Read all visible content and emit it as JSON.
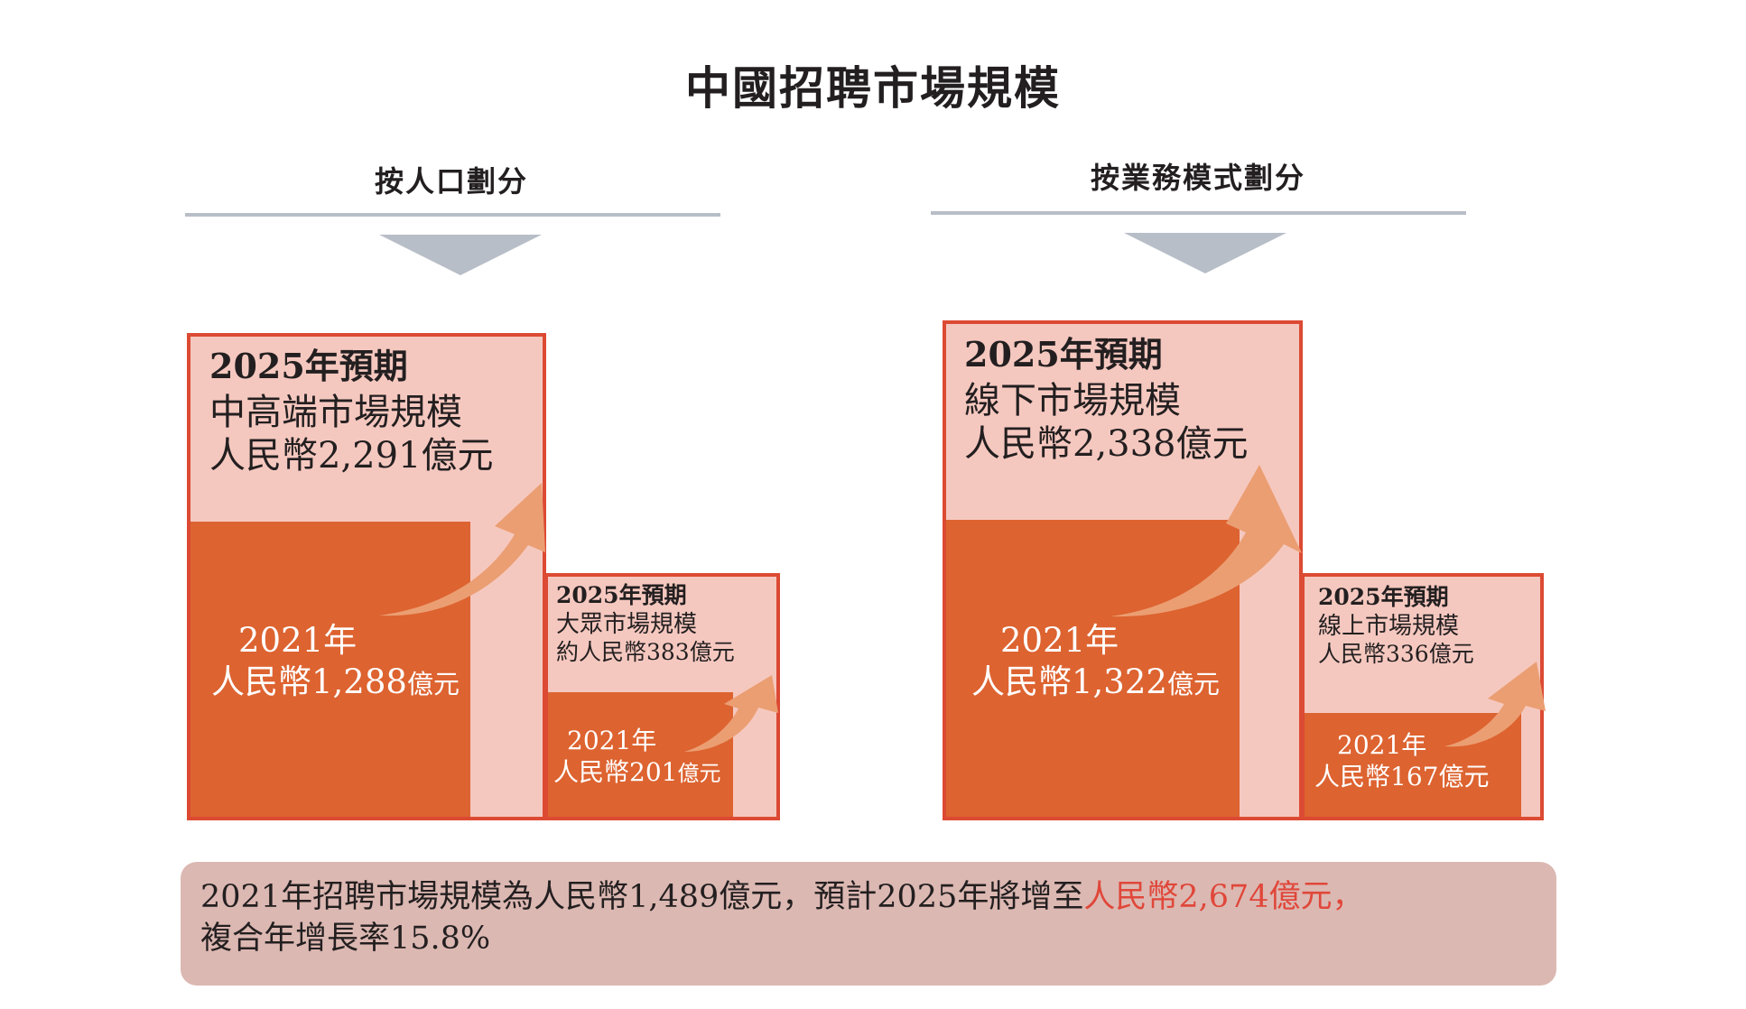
{
  "title": "中國招聘市場規模",
  "left": {
    "section_label": "按人口劃分",
    "big": {
      "forecast_head": "2025年預期",
      "forecast_name": "中高端市場規模",
      "forecast_value": "人民幣2,291億元",
      "current_year": "2021年",
      "current_value": "人民幣1,288",
      "current_unit": "億元"
    },
    "small": {
      "forecast_head": "2025年預期",
      "forecast_name": "大眾市場規模",
      "forecast_value": "約人民幣383億元",
      "current_year": "2021年",
      "current_value": "人民幣201",
      "current_unit": "億元"
    }
  },
  "right": {
    "section_label": "按業務模式劃分",
    "big": {
      "forecast_head": "2025年預期",
      "forecast_name": "線下市場規模",
      "forecast_value": "人民幣2,338億元",
      "current_year": "2021年",
      "current_value": "人民幣1,322",
      "current_unit": "億元"
    },
    "small": {
      "forecast_head": "2025年預期",
      "forecast_name": "線上市場規模",
      "forecast_value": "人民幣336億元",
      "current_year": "2021年",
      "current_value": "人民幣167億元",
      "current_unit": ""
    }
  },
  "summary": {
    "line1_a": "2021年招聘市場規模為人民幣1,489億元，預計2025年將增至",
    "line1_highlight": "人民幣2,674億元，",
    "line2": "複合年增長率15.8%"
  },
  "colors": {
    "forecast_fill": "#f5c8bf",
    "current_fill": "#dd6330",
    "border": "#dc4a33",
    "arrow": "#eb9e72",
    "rule": "#b8bec7",
    "chevron": "#b8bec7",
    "summary_bg": "#dcb8b2",
    "highlight": "#e0473a"
  }
}
